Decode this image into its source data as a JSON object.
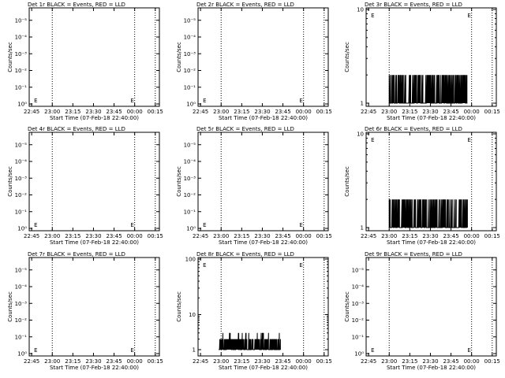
{
  "figure": {
    "background": "#ffffff",
    "ink": "#000000"
  },
  "xaxis": {
    "ticks": [
      "22:45",
      "23:00",
      "23:15",
      "23:30",
      "23:45",
      "00:00",
      "00:15"
    ],
    "title": "Start Time (07-Feb-18 22:40:00)"
  },
  "ylabel": "Counts/sec",
  "event_marker": "E",
  "chart_data": [
    {
      "type": "line",
      "title": "Det 1r BLACK = Events, RED = LLD",
      "ylog": true,
      "ytick_labels": [
        "10⁰",
        "10⁻¹",
        "10⁻²",
        "10⁻³",
        "10⁻⁴",
        "10⁻⁵"
      ],
      "event_labels": [
        [
          22.75,
          0.4
        ],
        [
          23.92,
          0.4
        ]
      ],
      "series": []
    },
    {
      "type": "line",
      "title": "Det 2r BLACK = Events, RED = LLD",
      "ylog": true,
      "ytick_labels": [
        "10⁰",
        "10⁻¹",
        "10⁻²",
        "10⁻³",
        "10⁻⁴",
        "10⁻⁵"
      ],
      "event_labels": [
        [
          22.75,
          0.4
        ],
        [
          23.92,
          0.4
        ]
      ],
      "series": []
    },
    {
      "type": "line",
      "title": "Det 3r BLACK = Events, RED = LLD",
      "ylog": true,
      "ytick_labels": [
        "1",
        "10"
      ],
      "event_labels": [
        [
          22.75,
          9
        ],
        [
          23.92,
          9
        ]
      ],
      "series": [
        {
          "x_range": [
            23.0,
            23.95
          ],
          "y_range": [
            1,
            2
          ],
          "style": "spikes"
        }
      ]
    },
    {
      "type": "line",
      "title": "Det 4r BLACK = Events, RED = LLD",
      "ylog": true,
      "ytick_labels": [
        "10⁰",
        "10⁻¹",
        "10⁻²",
        "10⁻³",
        "10⁻⁴",
        "10⁻⁵"
      ],
      "event_labels": [
        [
          22.75,
          0.4
        ],
        [
          23.92,
          0.4
        ]
      ],
      "series": []
    },
    {
      "type": "line",
      "title": "Det 5r BLACK = Events, RED = LLD",
      "ylog": true,
      "ytick_labels": [
        "10⁰",
        "10⁻¹",
        "10⁻²",
        "10⁻³",
        "10⁻⁴",
        "10⁻⁵"
      ],
      "event_labels": [
        [
          22.75,
          0.4
        ],
        [
          23.92,
          0.4
        ]
      ],
      "series": []
    },
    {
      "type": "line",
      "title": "Det 6r BLACK = Events, RED = LLD",
      "ylog": true,
      "ytick_labels": [
        "1",
        "10"
      ],
      "event_labels": [
        [
          22.75,
          9
        ],
        [
          23.92,
          9
        ]
      ],
      "series": [
        {
          "x_range": [
            23.0,
            23.95
          ],
          "y_range": [
            1,
            2
          ],
          "style": "spikes"
        }
      ]
    },
    {
      "type": "line",
      "title": "Det 7r BLACK = Events, RED = LLD",
      "ylog": true,
      "ytick_labels": [
        "10⁰",
        "10⁻¹",
        "10⁻²",
        "10⁻³",
        "10⁻⁴",
        "10⁻⁵"
      ],
      "event_labels": [
        [
          22.75,
          0.4
        ],
        [
          23.92,
          0.4
        ]
      ],
      "series": []
    },
    {
      "type": "line",
      "title": "Det 8r BLACK = Events, RED = LLD",
      "ylog": true,
      "ytick_labels": [
        "1",
        "10",
        "100"
      ],
      "event_labels": [
        [
          22.75,
          90
        ],
        [
          23.92,
          90
        ]
      ],
      "series": [
        {
          "x_range": [
            22.97,
            23.72
          ],
          "y_range": [
            1,
            3
          ],
          "style": "spikes"
        }
      ]
    },
    {
      "type": "line",
      "title": "Det 9r BLACK = Events, RED = LLD",
      "ylog": true,
      "ytick_labels": [
        "10⁰",
        "10⁻¹",
        "10⁻²",
        "10⁻³",
        "10⁻⁴",
        "10⁻⁵"
      ],
      "event_labels": [
        [
          22.75,
          0.4
        ],
        [
          23.92,
          0.4
        ]
      ],
      "series": []
    }
  ]
}
